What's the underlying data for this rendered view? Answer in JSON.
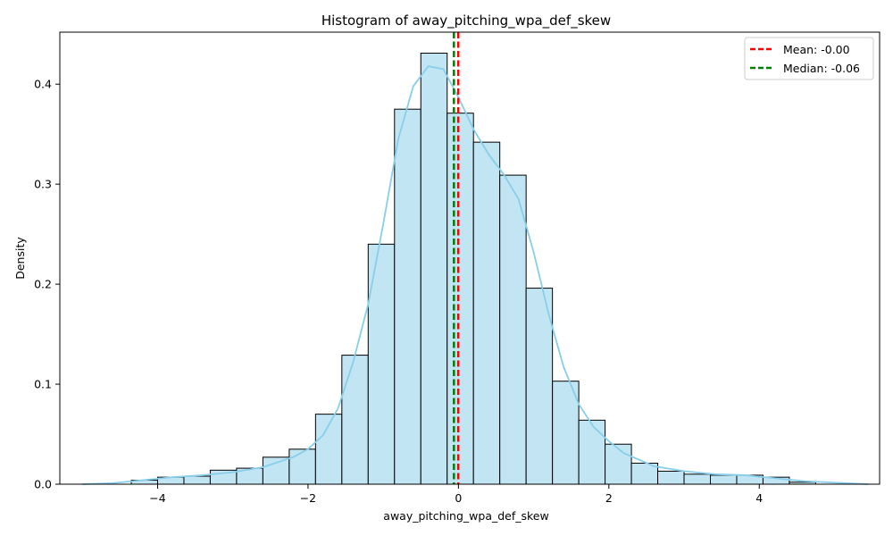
{
  "chart_data": {
    "type": "histogram",
    "title": "Histogram of away_pitching_wpa_def_skew",
    "xlabel": "away_pitching_wpa_def_skew",
    "ylabel": "Density",
    "xlim": [
      -5.3,
      5.6
    ],
    "ylim": [
      0,
      0.452
    ],
    "xticks": [
      -4,
      -2,
      0,
      2,
      4
    ],
    "xtick_labels": [
      "−4",
      "−2",
      "0",
      "2",
      "4"
    ],
    "yticks": [
      0.0,
      0.1,
      0.2,
      0.3,
      0.4
    ],
    "ytick_labels": [
      "0.0",
      "0.1",
      "0.2",
      "0.3",
      "0.4"
    ],
    "grid": false,
    "legend_position": "top-right",
    "bins": [
      {
        "x0": -4.35,
        "x1": -4.0,
        "value": 0.004
      },
      {
        "x0": -4.0,
        "x1": -3.65,
        "value": 0.007
      },
      {
        "x0": -3.65,
        "x1": -3.3,
        "value": 0.008
      },
      {
        "x0": -3.3,
        "x1": -2.95,
        "value": 0.014
      },
      {
        "x0": -2.95,
        "x1": -2.6,
        "value": 0.016
      },
      {
        "x0": -2.6,
        "x1": -2.25,
        "value": 0.027
      },
      {
        "x0": -2.25,
        "x1": -1.9,
        "value": 0.035
      },
      {
        "x0": -1.9,
        "x1": -1.55,
        "value": 0.07
      },
      {
        "x0": -1.55,
        "x1": -1.2,
        "value": 0.129
      },
      {
        "x0": -1.2,
        "x1": -0.85,
        "value": 0.24
      },
      {
        "x0": -0.85,
        "x1": -0.5,
        "value": 0.375
      },
      {
        "x0": -0.5,
        "x1": -0.15,
        "value": 0.431
      },
      {
        "x0": -0.15,
        "x1": 0.2,
        "value": 0.371
      },
      {
        "x0": 0.2,
        "x1": 0.55,
        "value": 0.342
      },
      {
        "x0": 0.55,
        "x1": 0.9,
        "value": 0.309
      },
      {
        "x0": 0.9,
        "x1": 1.25,
        "value": 0.196
      },
      {
        "x0": 1.25,
        "x1": 1.6,
        "value": 0.103
      },
      {
        "x0": 1.6,
        "x1": 1.95,
        "value": 0.064
      },
      {
        "x0": 1.95,
        "x1": 2.3,
        "value": 0.04
      },
      {
        "x0": 2.3,
        "x1": 2.65,
        "value": 0.021
      },
      {
        "x0": 2.65,
        "x1": 3.0,
        "value": 0.013
      },
      {
        "x0": 3.0,
        "x1": 3.35,
        "value": 0.01
      },
      {
        "x0": 3.35,
        "x1": 3.7,
        "value": 0.009
      },
      {
        "x0": 3.7,
        "x1": 4.05,
        "value": 0.009
      },
      {
        "x0": 4.05,
        "x1": 4.4,
        "value": 0.007
      },
      {
        "x0": 4.4,
        "x1": 4.75,
        "value": 0.002
      }
    ],
    "kde": {
      "x": [
        -5.0,
        -4.6,
        -4.2,
        -3.8,
        -3.4,
        -3.0,
        -2.6,
        -2.2,
        -2.0,
        -1.8,
        -1.6,
        -1.4,
        -1.2,
        -1.0,
        -0.8,
        -0.6,
        -0.4,
        -0.2,
        0.0,
        0.2,
        0.4,
        0.6,
        0.8,
        1.0,
        1.2,
        1.4,
        1.6,
        1.8,
        2.0,
        2.2,
        2.6,
        3.0,
        3.4,
        3.8,
        4.2,
        4.6,
        5.0,
        5.45
      ],
      "y": [
        0.0,
        0.001,
        0.004,
        0.007,
        0.009,
        0.012,
        0.017,
        0.027,
        0.035,
        0.049,
        0.076,
        0.122,
        0.18,
        0.26,
        0.345,
        0.398,
        0.418,
        0.415,
        0.387,
        0.355,
        0.33,
        0.31,
        0.285,
        0.232,
        0.17,
        0.117,
        0.08,
        0.057,
        0.043,
        0.031,
        0.018,
        0.013,
        0.01,
        0.009,
        0.006,
        0.003,
        0.0015,
        0.0
      ]
    },
    "reference_lines": [
      {
        "name": "Mean: -0.00",
        "x": -0.002,
        "color": "#ff0000"
      },
      {
        "name": "Median: -0.06",
        "x": -0.06,
        "color": "#008000"
      }
    ],
    "colors": {
      "bar_fill": "#c2e5f3",
      "bar_edge": "#000000",
      "kde_line": "#87ceeb"
    }
  }
}
